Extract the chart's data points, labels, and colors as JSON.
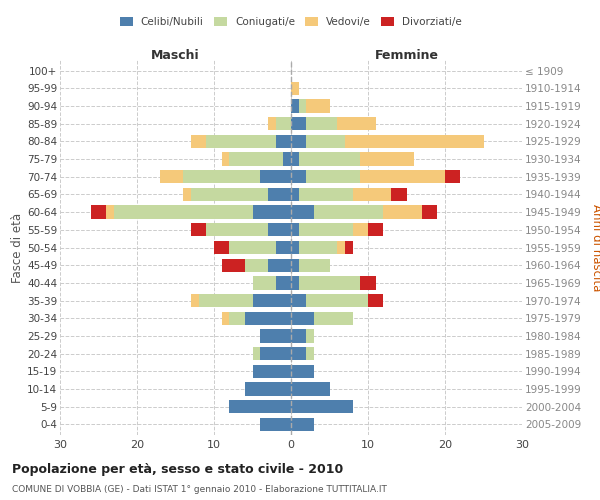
{
  "age_groups": [
    "0-4",
    "5-9",
    "10-14",
    "15-19",
    "20-24",
    "25-29",
    "30-34",
    "35-39",
    "40-44",
    "45-49",
    "50-54",
    "55-59",
    "60-64",
    "65-69",
    "70-74",
    "75-79",
    "80-84",
    "85-89",
    "90-94",
    "95-99",
    "100+"
  ],
  "birth_years": [
    "2005-2009",
    "2000-2004",
    "1995-1999",
    "1990-1994",
    "1985-1989",
    "1980-1984",
    "1975-1979",
    "1970-1974",
    "1965-1969",
    "1960-1964",
    "1955-1959",
    "1950-1954",
    "1945-1949",
    "1940-1944",
    "1935-1939",
    "1930-1934",
    "1925-1929",
    "1920-1924",
    "1915-1919",
    "1910-1914",
    "≤ 1909"
  ],
  "males": {
    "celibi": [
      4,
      8,
      6,
      5,
      4,
      4,
      6,
      5,
      2,
      3,
      2,
      3,
      5,
      3,
      4,
      1,
      2,
      0,
      0,
      0,
      0
    ],
    "coniugati": [
      0,
      0,
      0,
      0,
      1,
      0,
      2,
      7,
      3,
      3,
      6,
      8,
      18,
      10,
      10,
      7,
      9,
      2,
      0,
      0,
      0
    ],
    "vedovi": [
      0,
      0,
      0,
      0,
      0,
      0,
      1,
      1,
      0,
      0,
      0,
      0,
      1,
      1,
      3,
      1,
      2,
      1,
      0,
      0,
      0
    ],
    "divorziati": [
      0,
      0,
      0,
      0,
      0,
      0,
      0,
      0,
      0,
      3,
      2,
      2,
      2,
      0,
      0,
      0,
      0,
      0,
      0,
      0,
      0
    ]
  },
  "females": {
    "nubili": [
      3,
      8,
      5,
      3,
      2,
      2,
      3,
      2,
      1,
      1,
      1,
      1,
      3,
      1,
      2,
      1,
      2,
      2,
      1,
      0,
      0
    ],
    "coniugate": [
      0,
      0,
      0,
      0,
      1,
      1,
      5,
      8,
      8,
      4,
      5,
      7,
      9,
      7,
      7,
      8,
      5,
      4,
      1,
      0,
      0
    ],
    "vedove": [
      0,
      0,
      0,
      0,
      0,
      0,
      0,
      0,
      0,
      0,
      1,
      2,
      5,
      5,
      11,
      7,
      18,
      5,
      3,
      1,
      0
    ],
    "divorziate": [
      0,
      0,
      0,
      0,
      0,
      0,
      0,
      2,
      2,
      0,
      1,
      2,
      2,
      2,
      2,
      0,
      0,
      0,
      0,
      0,
      0
    ]
  },
  "colors": {
    "celibi_nubili": "#4e7fad",
    "coniugati": "#c5d9a0",
    "vedovi": "#f5c97a",
    "divorziati": "#cc2222"
  },
  "xlim": 30,
  "title": "Popolazione per età, sesso e stato civile - 2010",
  "subtitle": "COMUNE DI VOBBIA (GE) - Dati ISTAT 1° gennaio 2010 - Elaborazione TUTTITALIA.IT",
  "ylabel_left": "Fasce di età",
  "ylabel_right": "Anni di nascita",
  "xlabel_left": "Maschi",
  "xlabel_right": "Femmine",
  "legend_labels": [
    "Celibi/Nubili",
    "Coniugati/e",
    "Vedovi/e",
    "Divorziati/e"
  ],
  "bg_color": "#ffffff",
  "grid_color": "#cccccc"
}
